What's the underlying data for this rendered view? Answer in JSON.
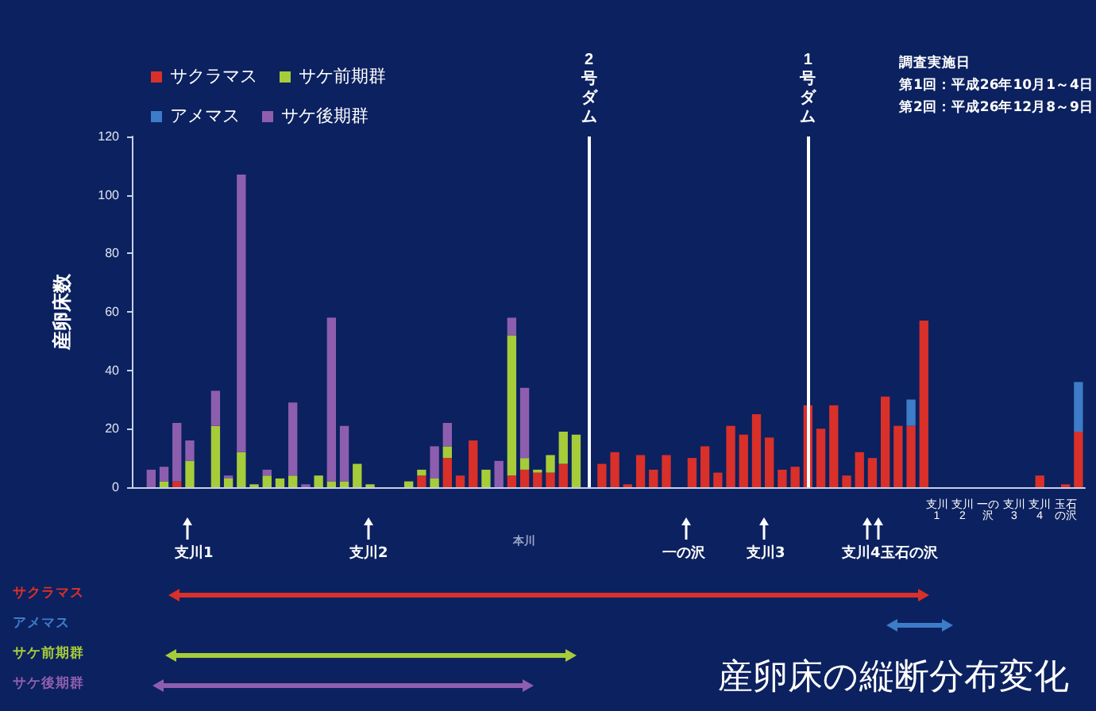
{
  "chart_data": {
    "type": "bar",
    "stacked": true,
    "title": "産卵床の縦断分布変化",
    "ylabel": "産卵床数",
    "categories": [
      null,
      null,
      null,
      null,
      null,
      null,
      null,
      null,
      null,
      null,
      null,
      null,
      null,
      null,
      null,
      null,
      null,
      null,
      null,
      null,
      null,
      null,
      null,
      null,
      null,
      null,
      null,
      null,
      null,
      null,
      null,
      null,
      null,
      null,
      null,
      null,
      null,
      null,
      null,
      null,
      null,
      null,
      null,
      null,
      null,
      null,
      null,
      null,
      null,
      null,
      null,
      null,
      null,
      null,
      null,
      null,
      null,
      null,
      null,
      null,
      null,
      null,
      "支川1",
      null,
      "支川2",
      null,
      "一の沢",
      null,
      "支川3",
      null,
      "支川4",
      null,
      "玉石の沢",
      null
    ],
    "series": [
      {
        "name": "サクラマス",
        "color": "#d9302a",
        "values": [
          null,
          null,
          null,
          2,
          null,
          null,
          null,
          null,
          null,
          null,
          null,
          null,
          null,
          null,
          null,
          null,
          null,
          null,
          null,
          null,
          null,
          null,
          4,
          null,
          10,
          4,
          16,
          null,
          null,
          4,
          6,
          5,
          5,
          8,
          null,
          null,
          8,
          12,
          1,
          11,
          6,
          11,
          null,
          10,
          14,
          5,
          21,
          18,
          25,
          17,
          6,
          7,
          28,
          20,
          28,
          4,
          12,
          10,
          31,
          21,
          21,
          57,
          null,
          null,
          null,
          null,
          null,
          null,
          null,
          null,
          4,
          null,
          1,
          19
        ]
      },
      {
        "name": "アメマス",
        "color": "#3d7cc9",
        "values": [
          null,
          null,
          null,
          null,
          null,
          null,
          null,
          null,
          null,
          null,
          null,
          null,
          null,
          null,
          null,
          null,
          null,
          null,
          null,
          null,
          null,
          null,
          null,
          null,
          null,
          null,
          null,
          null,
          null,
          null,
          null,
          null,
          null,
          null,
          null,
          null,
          null,
          null,
          null,
          null,
          null,
          null,
          null,
          null,
          null,
          null,
          null,
          null,
          null,
          null,
          null,
          null,
          null,
          null,
          null,
          null,
          null,
          null,
          null,
          null,
          9,
          null,
          null,
          null,
          null,
          null,
          null,
          null,
          null,
          null,
          null,
          null,
          null,
          17
        ]
      },
      {
        "name": "サケ前期群",
        "color": "#a6cc3a",
        "values": [
          null,
          null,
          2,
          null,
          9,
          null,
          21,
          3,
          12,
          1,
          4,
          3,
          4,
          null,
          4,
          2,
          2,
          8,
          1,
          null,
          null,
          2,
          2,
          3,
          4,
          null,
          null,
          6,
          null,
          48,
          4,
          1,
          6,
          11,
          18,
          null,
          null,
          null,
          null,
          null,
          null,
          null,
          null,
          null,
          null,
          null,
          null,
          null,
          null,
          null,
          null,
          null,
          null,
          null,
          null,
          null,
          null,
          null,
          null,
          null,
          null,
          null,
          null,
          null,
          null,
          null,
          null,
          null,
          null,
          null,
          null,
          null,
          null,
          null
        ]
      },
      {
        "name": "サケ後期群",
        "color": "#8e5eae",
        "values": [
          null,
          6,
          5,
          20,
          7,
          null,
          12,
          1,
          95,
          null,
          2,
          null,
          25,
          1,
          null,
          56,
          19,
          null,
          null,
          null,
          null,
          null,
          null,
          11,
          8,
          null,
          null,
          null,
          9,
          6,
          24,
          null,
          null,
          null,
          null,
          null,
          null,
          null,
          null,
          null,
          null,
          null,
          null,
          null,
          null,
          null,
          null,
          null,
          null,
          null,
          null,
          null,
          null,
          null,
          null,
          null,
          null,
          null,
          null,
          null,
          null,
          null,
          null,
          null,
          null,
          null,
          null,
          null,
          null,
          null,
          null,
          null,
          null,
          null
        ]
      }
    ],
    "ylim": [
      0,
      120
    ],
    "yticks": [
      0,
      20,
      40,
      60,
      80,
      100,
      120
    ],
    "grid": false,
    "legend": "top left",
    "annotations": [
      "調査実施日",
      "第1回：平成26年10月1～4日",
      "第2回：平成26年12月8～9日",
      "2号ダム",
      "1号ダム",
      "支川1",
      "支川2",
      "本川",
      "一の沢",
      "支川3",
      "支川4玉石の沢"
    ]
  }
}
